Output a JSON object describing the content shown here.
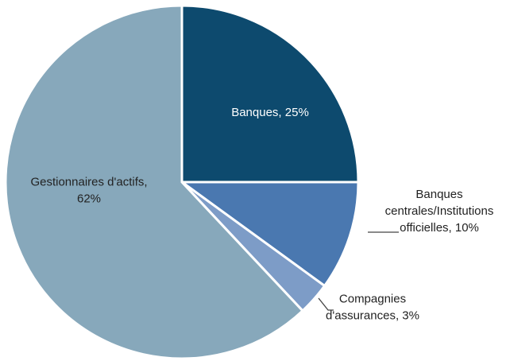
{
  "chart_data": {
    "type": "pie",
    "title": "",
    "start_angle_deg": 0,
    "direction": "clockwise",
    "slices": [
      {
        "label_lines": [
          "Banques, 25%"
        ],
        "value": 25,
        "color": "#0d4a6e"
      },
      {
        "label_lines": [
          "Banques",
          "centrales/Institutions",
          "officielles, 10%"
        ],
        "value": 10,
        "color": "#4a78b0"
      },
      {
        "label_lines": [
          "Compagnies",
          "d'assurances, 3%"
        ],
        "value": 3,
        "color": "#7d9cc7"
      },
      {
        "label_lines": [
          "Gestionnaires d'actifs,",
          "62%"
        ],
        "value": 62,
        "color": "#87a8bb"
      }
    ]
  }
}
